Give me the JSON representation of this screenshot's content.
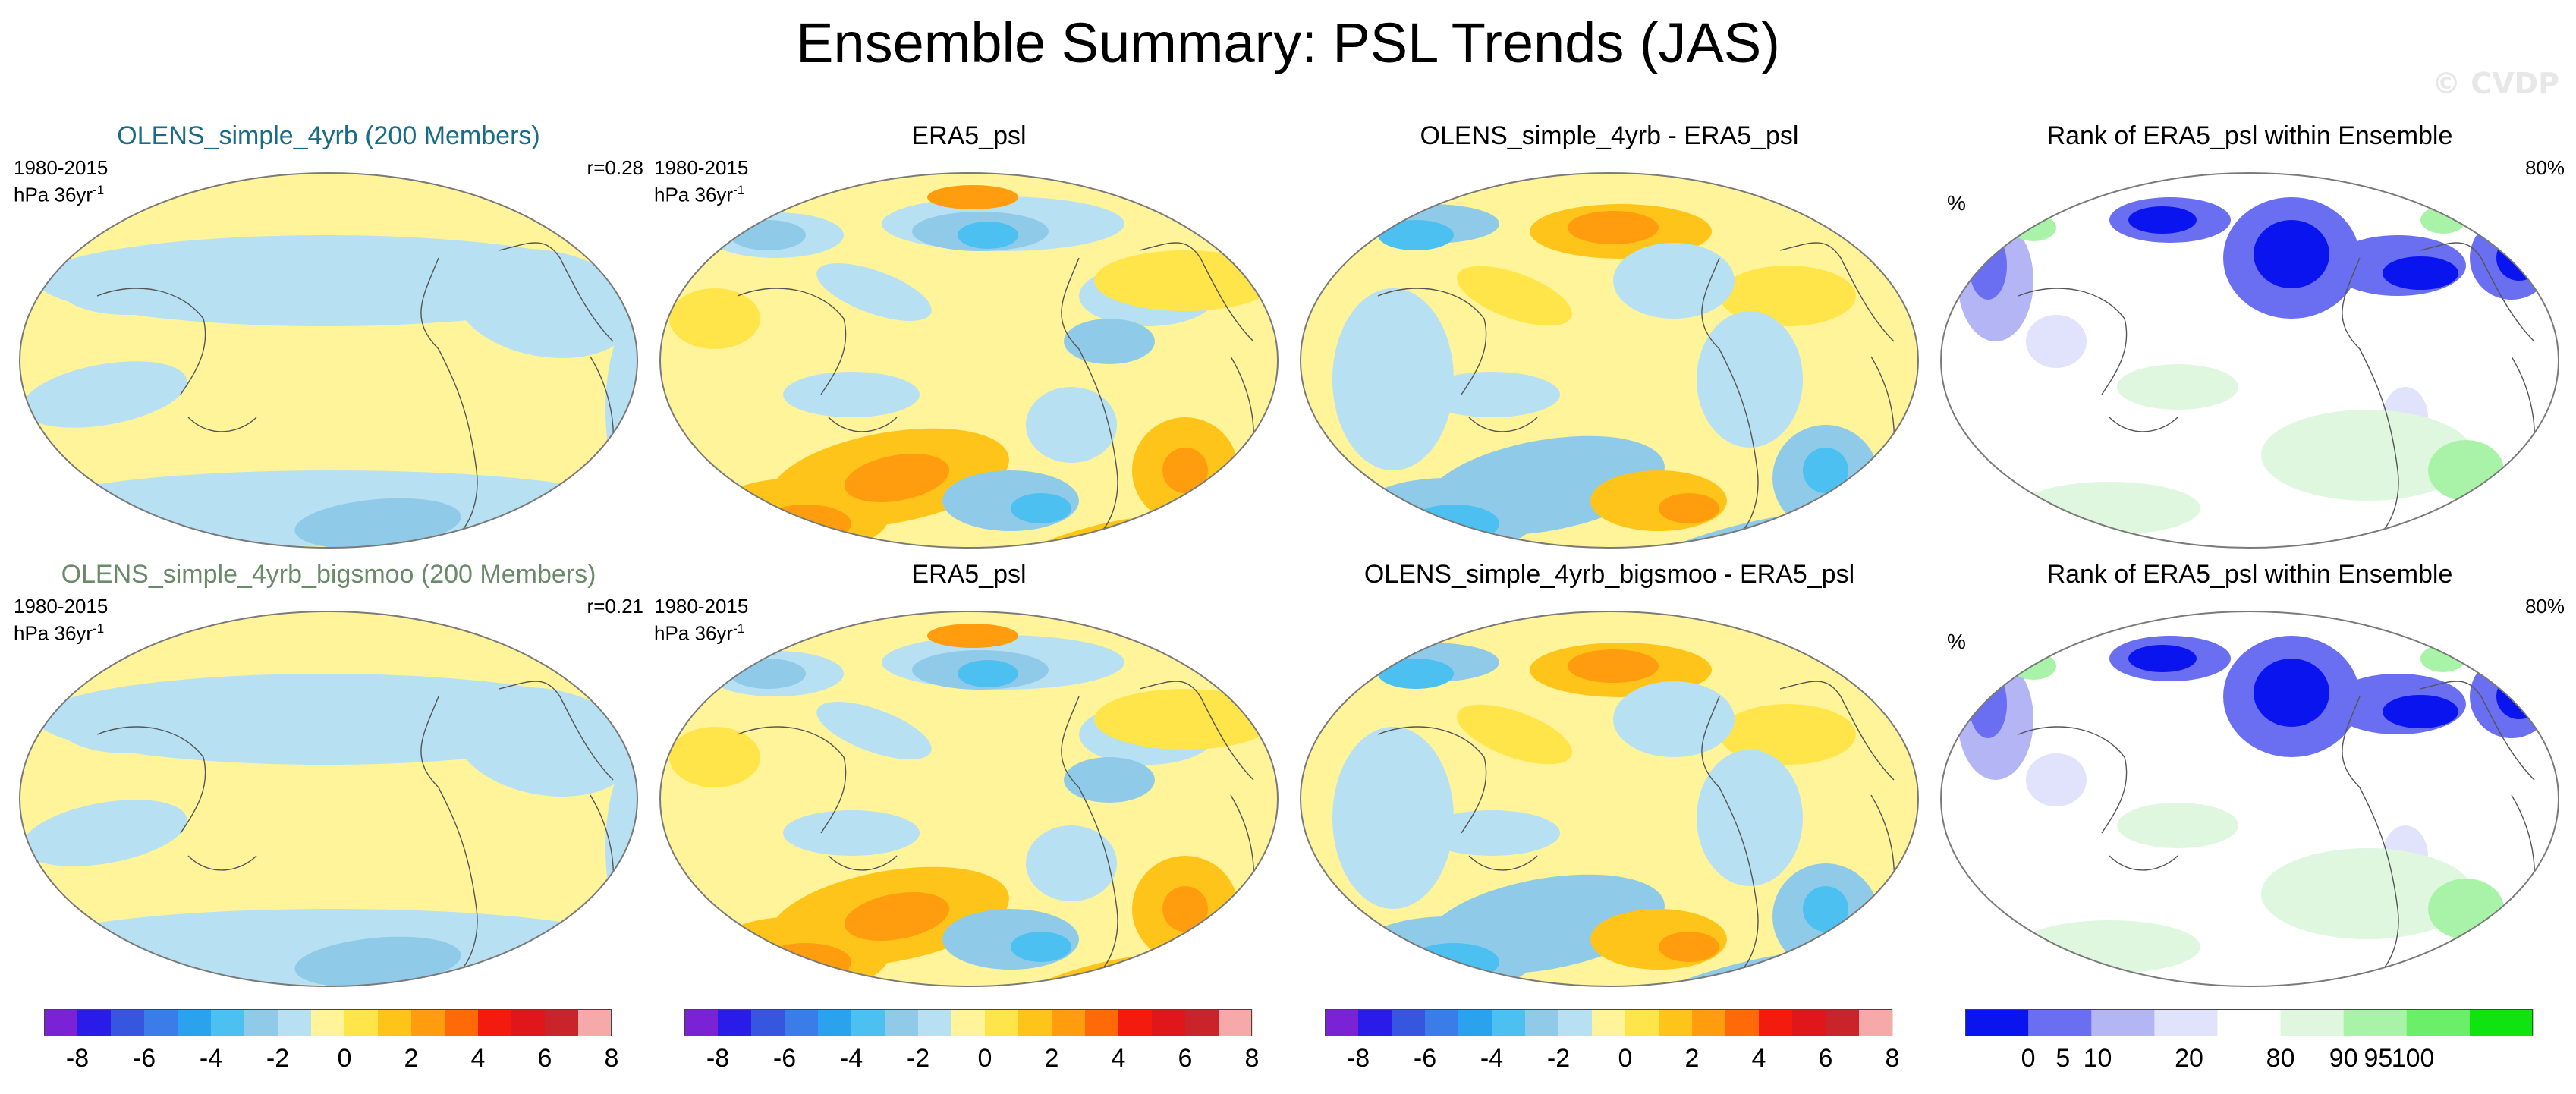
{
  "title": "Ensemble Summary: PSL Trends (JAS)",
  "watermark": "© CVDP",
  "colors": {
    "ensemble_title_row1": "#1a6c86",
    "ensemble_title_row2": "#6a8a6a",
    "map_background": "#fff49a",
    "map_outline": "#7a7a7a"
  },
  "rows": [
    {
      "panels": [
        {
          "title": "OLENS_simple_4yrb (200 Members)",
          "left_label_1": "1980-2015",
          "left_label_2": "hPa 36yr",
          "left_label_sup": "-1",
          "right_label": "r=0.28",
          "kind": "ens"
        },
        {
          "title": "ERA5_psl",
          "left_label_1": "1980-2015",
          "left_label_2": "hPa 36yr",
          "left_label_sup": "-1",
          "right_label": "",
          "kind": "obs"
        },
        {
          "title": "OLENS_simple_4yrb - ERA5_psl",
          "left_label_1": "",
          "left_label_2": "",
          "left_label_sup": "",
          "right_label": "",
          "kind": "diff"
        },
        {
          "title": "Rank of ERA5_psl within Ensemble",
          "left_label_1": "%",
          "left_label_2": "",
          "left_label_sup": "",
          "right_label": "80%",
          "kind": "rank"
        }
      ]
    },
    {
      "panels": [
        {
          "title": "OLENS_simple_4yrb_bigsmoo (200 Members)",
          "left_label_1": "1980-2015",
          "left_label_2": "hPa 36yr",
          "left_label_sup": "-1",
          "right_label": "r=0.21",
          "kind": "ens"
        },
        {
          "title": "ERA5_psl",
          "left_label_1": "1980-2015",
          "left_label_2": "hPa 36yr",
          "left_label_sup": "-1",
          "right_label": "",
          "kind": "obs"
        },
        {
          "title": "OLENS_simple_4yrb_bigsmoo - ERA5_psl",
          "left_label_1": "",
          "left_label_2": "",
          "left_label_sup": "",
          "right_label": "",
          "kind": "diff"
        },
        {
          "title": "Rank of ERA5_psl within Ensemble",
          "left_label_1": "%",
          "left_label_2": "",
          "left_label_sup": "",
          "right_label": "80%",
          "kind": "rank"
        }
      ]
    }
  ],
  "chart_data": {
    "type": "heatmap",
    "colorbars": [
      {
        "ticks": [
          "-8",
          "-6",
          "-4",
          "-2",
          "0",
          "2",
          "4",
          "6",
          "8"
        ],
        "colors": [
          "#7b22d6",
          "#2a1ce8",
          "#3656e0",
          "#3b7de8",
          "#2aa2ee",
          "#4cc0f0",
          "#8fcbe9",
          "#b7e0f2",
          "#fff49a",
          "#ffe54a",
          "#ffc419",
          "#ff9d0e",
          "#ff6a08",
          "#f21b0d",
          "#e0171a",
          "#c8242a",
          "#f6a9a9"
        ]
      },
      {
        "ticks": [
          "-8",
          "-6",
          "-4",
          "-2",
          "0",
          "2",
          "4",
          "6",
          "8"
        ],
        "colors": [
          "#7b22d6",
          "#2a1ce8",
          "#3656e0",
          "#3b7de8",
          "#2aa2ee",
          "#4cc0f0",
          "#8fcbe9",
          "#b7e0f2",
          "#fff49a",
          "#ffe54a",
          "#ffc419",
          "#ff9d0e",
          "#ff6a08",
          "#f21b0d",
          "#e0171a",
          "#c8242a",
          "#f6a9a9"
        ]
      },
      {
        "ticks": [
          "-8",
          "-6",
          "-4",
          "-2",
          "0",
          "2",
          "4",
          "6",
          "8"
        ],
        "colors": [
          "#7b22d6",
          "#2a1ce8",
          "#3656e0",
          "#3b7de8",
          "#2aa2ee",
          "#4cc0f0",
          "#8fcbe9",
          "#b7e0f2",
          "#fff49a",
          "#ffe54a",
          "#ffc419",
          "#ff9d0e",
          "#ff6a08",
          "#f21b0d",
          "#e0171a",
          "#c8242a",
          "#f6a9a9"
        ]
      },
      {
        "ticks": [
          "0",
          "5",
          "10",
          "20",
          "80",
          "90",
          "95",
          "100"
        ],
        "boundaries": [
          0,
          5,
          10,
          20,
          80,
          90,
          95,
          100
        ],
        "colors": [
          "#0a14ee",
          "#6a6ef0",
          "#b3b5f4",
          "#e1e2fb",
          "#ffffff",
          "#def7de",
          "#a9f3a9",
          "#6bef6b",
          "#10e410"
        ]
      }
    ]
  }
}
